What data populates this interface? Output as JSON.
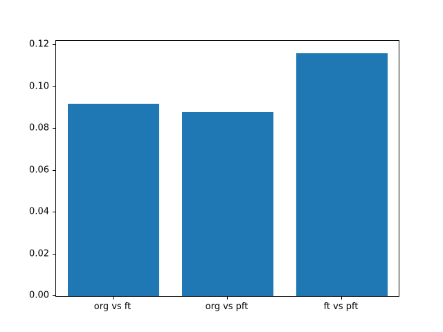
{
  "chart_data": {
    "type": "bar",
    "title": "",
    "xlabel": "",
    "ylabel": "",
    "categories": [
      "org vs ft",
      "org vs pft",
      "ft vs pft"
    ],
    "values": [
      0.092,
      0.088,
      0.116
    ],
    "ylim": [
      0,
      0.122
    ],
    "yticks": [
      0,
      0.02,
      0.04,
      0.06,
      0.08,
      0.1,
      0.12
    ],
    "ytick_decimals": 2,
    "bar_color": "#1f77b4",
    "bar_width_fraction": 0.8,
    "grid": false,
    "legend": "none",
    "background_color": "#ffffff",
    "axis_color": "#000000"
  }
}
